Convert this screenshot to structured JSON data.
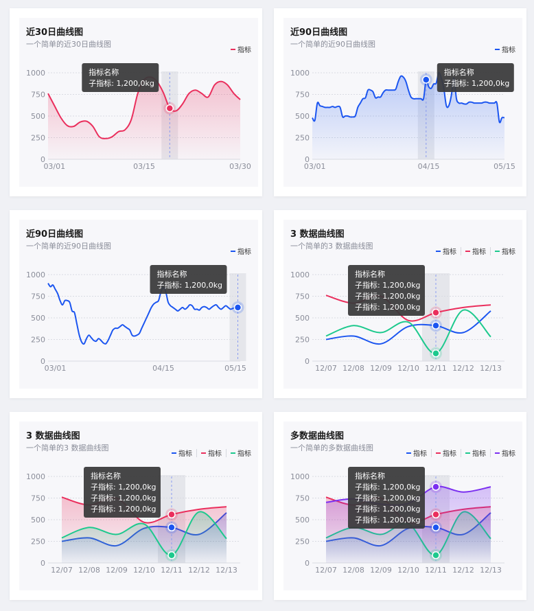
{
  "colors": {
    "blue": "#1b55f0",
    "red": "#ea2e5c",
    "green": "#1dc98d",
    "purple": "#7b2ff0",
    "gridline": "#d9dbe2"
  },
  "cards": [
    {
      "title": "近30日曲线图",
      "subtitle": "一个简单的近30日曲线图",
      "tooltip": {
        "title": "指标名称",
        "lines": [
          "子指标: 1,200,0kg"
        ]
      },
      "chart_data": {
        "type": "area",
        "ylim": [
          0,
          1000
        ],
        "yticks": [
          0,
          250,
          500,
          750,
          1000
        ],
        "xticks": [
          "03/01",
          "03/15",
          "03/30"
        ],
        "x_tick_index": [
          1,
          15,
          30
        ],
        "n": 31,
        "highlight": 19,
        "dim_highlight_bg": true,
        "series": [
          {
            "name": "指标",
            "color": "red",
            "fill": true,
            "values": [
              760,
              620,
              480,
              390,
              380,
              430,
              440,
              380,
              260,
              240,
              260,
              320,
              340,
              460,
              760,
              920,
              950,
              900,
              770,
              590,
              560,
              640,
              760,
              800,
              760,
              720,
              860,
              900,
              860,
              760,
              690
            ]
          }
        ]
      }
    },
    {
      "title": "近90日曲线图",
      "subtitle": "一个简单的近90日曲线图",
      "tooltip": {
        "title": "指标名称",
        "lines": [
          "子指标: 1,200,0kg"
        ]
      },
      "chart_data": {
        "type": "area",
        "ylim": [
          0,
          1000
        ],
        "yticks": [
          0,
          250,
          500,
          750,
          1000
        ],
        "xticks": [
          "03/01",
          "04/15",
          "05/15"
        ],
        "x_tick_index": [
          1,
          46,
          76
        ],
        "n": 77,
        "highlight": 45,
        "dim_highlight_bg": true,
        "series": [
          {
            "name": "指标",
            "color": "blue",
            "fill": true,
            "values": [
              480,
              450,
              650,
              620,
              610,
              600,
              600,
              600,
              610,
              600,
              610,
              600,
              490,
              500,
              500,
              490,
              490,
              500,
              600,
              650,
              700,
              710,
              800,
              800,
              780,
              710,
              720,
              720,
              770,
              800,
              800,
              800,
              800,
              810,
              900,
              960,
              950,
              900,
              800,
              720,
              700,
              700,
              700,
              700,
              700,
              920,
              840,
              820,
              870,
              880,
              1000,
              940,
              820,
              620,
              620,
              740,
              940,
              700,
              650,
              650,
              640,
              640,
              660,
              660,
              650,
              650,
              650,
              650,
              660,
              660,
              650,
              650,
              650,
              650,
              430,
              480,
              480
            ]
          }
        ]
      }
    },
    {
      "title": "近90日曲线图",
      "subtitle": "一个简单的近90日曲线图",
      "tooltip": {
        "title": "指标名称",
        "lines": [
          "子指标: 1,200,0kg"
        ]
      },
      "chart_data": {
        "type": "line",
        "ylim": [
          0,
          1000
        ],
        "yticks": [
          0,
          250,
          500,
          750,
          1000
        ],
        "xticks": [
          "03/01",
          "04/15",
          "05/15"
        ],
        "x_tick_index": [
          3,
          48,
          78
        ],
        "n": 81,
        "highlight": 79,
        "dim_highlight_bg": true,
        "series": [
          {
            "name": "指标",
            "color": "blue",
            "fill": false,
            "values": [
              900,
              860,
              880,
              830,
              780,
              700,
              650,
              700,
              700,
              680,
              580,
              560,
              430,
              300,
              220,
              200,
              260,
              300,
              270,
              240,
              230,
              260,
              240,
              210,
              200,
              240,
              300,
              360,
              380,
              380,
              400,
              420,
              400,
              380,
              360,
              300,
              290,
              300,
              320,
              380,
              440,
              500,
              560,
              620,
              660,
              680,
              700,
              800,
              850,
              800,
              680,
              640,
              620,
              600,
              580,
              600,
              620,
              600,
              620,
              650,
              640,
              600,
              600,
              590,
              620,
              630,
              620,
              600,
              620,
              640,
              650,
              620,
              600,
              620,
              640,
              620,
              600,
              610,
              620,
              620,
              660
            ]
          }
        ]
      }
    },
    {
      "title": "3 数据曲线图",
      "subtitle": "一个简单的3 数据曲线图",
      "tooltip": {
        "title": "指标名称",
        "lines": [
          "子指标: 1,200,0kg",
          "子指标: 1,200,0kg",
          "子指标: 1,200,0kg"
        ]
      },
      "chart_data": {
        "type": "line",
        "ylim": [
          0,
          1000
        ],
        "yticks": [
          0,
          250,
          500,
          750,
          1000
        ],
        "xticks": [
          "12/07",
          "12/08",
          "12/09",
          "12/10",
          "12/11",
          "12/12",
          "12/13"
        ],
        "x_tick_index": [
          0,
          1,
          2,
          3,
          4,
          5,
          6
        ],
        "n": 7,
        "highlight": 4,
        "dim_highlight_bg": true,
        "x_pad": true,
        "series": [
          {
            "name": "指标",
            "color": "blue",
            "fill": false,
            "values": [
              250,
              290,
              200,
              400,
              410,
              330,
              580
            ]
          },
          {
            "name": "指标",
            "color": "red",
            "fill": false,
            "values": [
              760,
              670,
              750,
              470,
              560,
              620,
              650
            ]
          },
          {
            "name": "指标",
            "color": "green",
            "fill": false,
            "values": [
              290,
              410,
              330,
              450,
              90,
              590,
              280
            ]
          }
        ]
      }
    },
    {
      "title": "3 数据曲线图",
      "subtitle": "一个简单的3 数据曲线图",
      "tooltip": {
        "title": "指标名称",
        "lines": [
          "子指标: 1,200,0kg",
          "子指标: 1,200,0kg",
          "子指标: 1,200,0kg"
        ]
      },
      "chart_data": {
        "type": "area",
        "ylim": [
          0,
          1000
        ],
        "yticks": [
          0,
          250,
          500,
          750,
          1000
        ],
        "xticks": [
          "12/07",
          "12/08",
          "12/09",
          "12/10",
          "12/11",
          "12/12",
          "12/13"
        ],
        "x_tick_index": [
          0,
          1,
          2,
          3,
          4,
          5,
          6
        ],
        "n": 7,
        "highlight": 4,
        "dim_highlight_bg": true,
        "x_pad": true,
        "series": [
          {
            "name": "指标",
            "color": "blue",
            "fill": true,
            "values": [
              250,
              290,
              200,
              400,
              410,
              330,
              580
            ]
          },
          {
            "name": "指标",
            "color": "red",
            "fill": true,
            "values": [
              760,
              670,
              750,
              470,
              560,
              620,
              650
            ]
          },
          {
            "name": "指标",
            "color": "green",
            "fill": true,
            "values": [
              290,
              410,
              330,
              450,
              90,
              590,
              280
            ]
          }
        ]
      }
    },
    {
      "title": "多数据曲线图",
      "subtitle": "一个简单的多数据曲线图",
      "tooltip": {
        "title": "指标名称",
        "lines": [
          "子指标: 1,200,0kg",
          "子指标: 1,200,0kg",
          "子指标: 1,200,0kg",
          "子指标: 1,200,0kg"
        ]
      },
      "chart_data": {
        "type": "area",
        "ylim": [
          0,
          1000
        ],
        "yticks": [
          0,
          250,
          500,
          750,
          1000
        ],
        "xticks": [
          "12/07",
          "12/08",
          "12/09",
          "12/10",
          "12/11",
          "12/12",
          "12/13"
        ],
        "x_tick_index": [
          0,
          1,
          2,
          3,
          4,
          5,
          6
        ],
        "n": 7,
        "highlight": 4,
        "dim_highlight_bg": true,
        "x_pad": true,
        "series": [
          {
            "name": "指标",
            "color": "blue",
            "fill": true,
            "values": [
              250,
              290,
              200,
              400,
              410,
              330,
              580
            ]
          },
          {
            "name": "指标",
            "color": "red",
            "fill": true,
            "values": [
              760,
              670,
              750,
              470,
              560,
              620,
              650
            ]
          },
          {
            "name": "指标",
            "color": "green",
            "fill": true,
            "values": [
              290,
              410,
              330,
              450,
              90,
              590,
              280
            ]
          },
          {
            "name": "指标",
            "color": "purple",
            "fill": true,
            "values": [
              700,
              740,
              680,
              690,
              880,
              820,
              880
            ]
          }
        ]
      }
    }
  ]
}
